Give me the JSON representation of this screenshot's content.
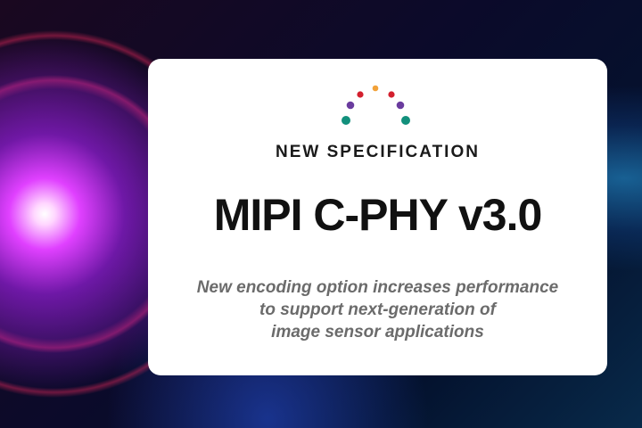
{
  "card": {
    "kicker": "NEW SPECIFICATION",
    "title": "MIPI C-PHY v3.0",
    "subtitle_lines": [
      "New encoding option increases performance",
      "to support next-generation of",
      "image sensor applications"
    ]
  },
  "logo": {
    "icon": "mipi-dots-arc-logo",
    "colors": [
      "#12907c",
      "#6a3c9e",
      "#d3202e",
      "#f2a23a",
      "#d3202e",
      "#6a3c9e",
      "#12907c"
    ]
  }
}
